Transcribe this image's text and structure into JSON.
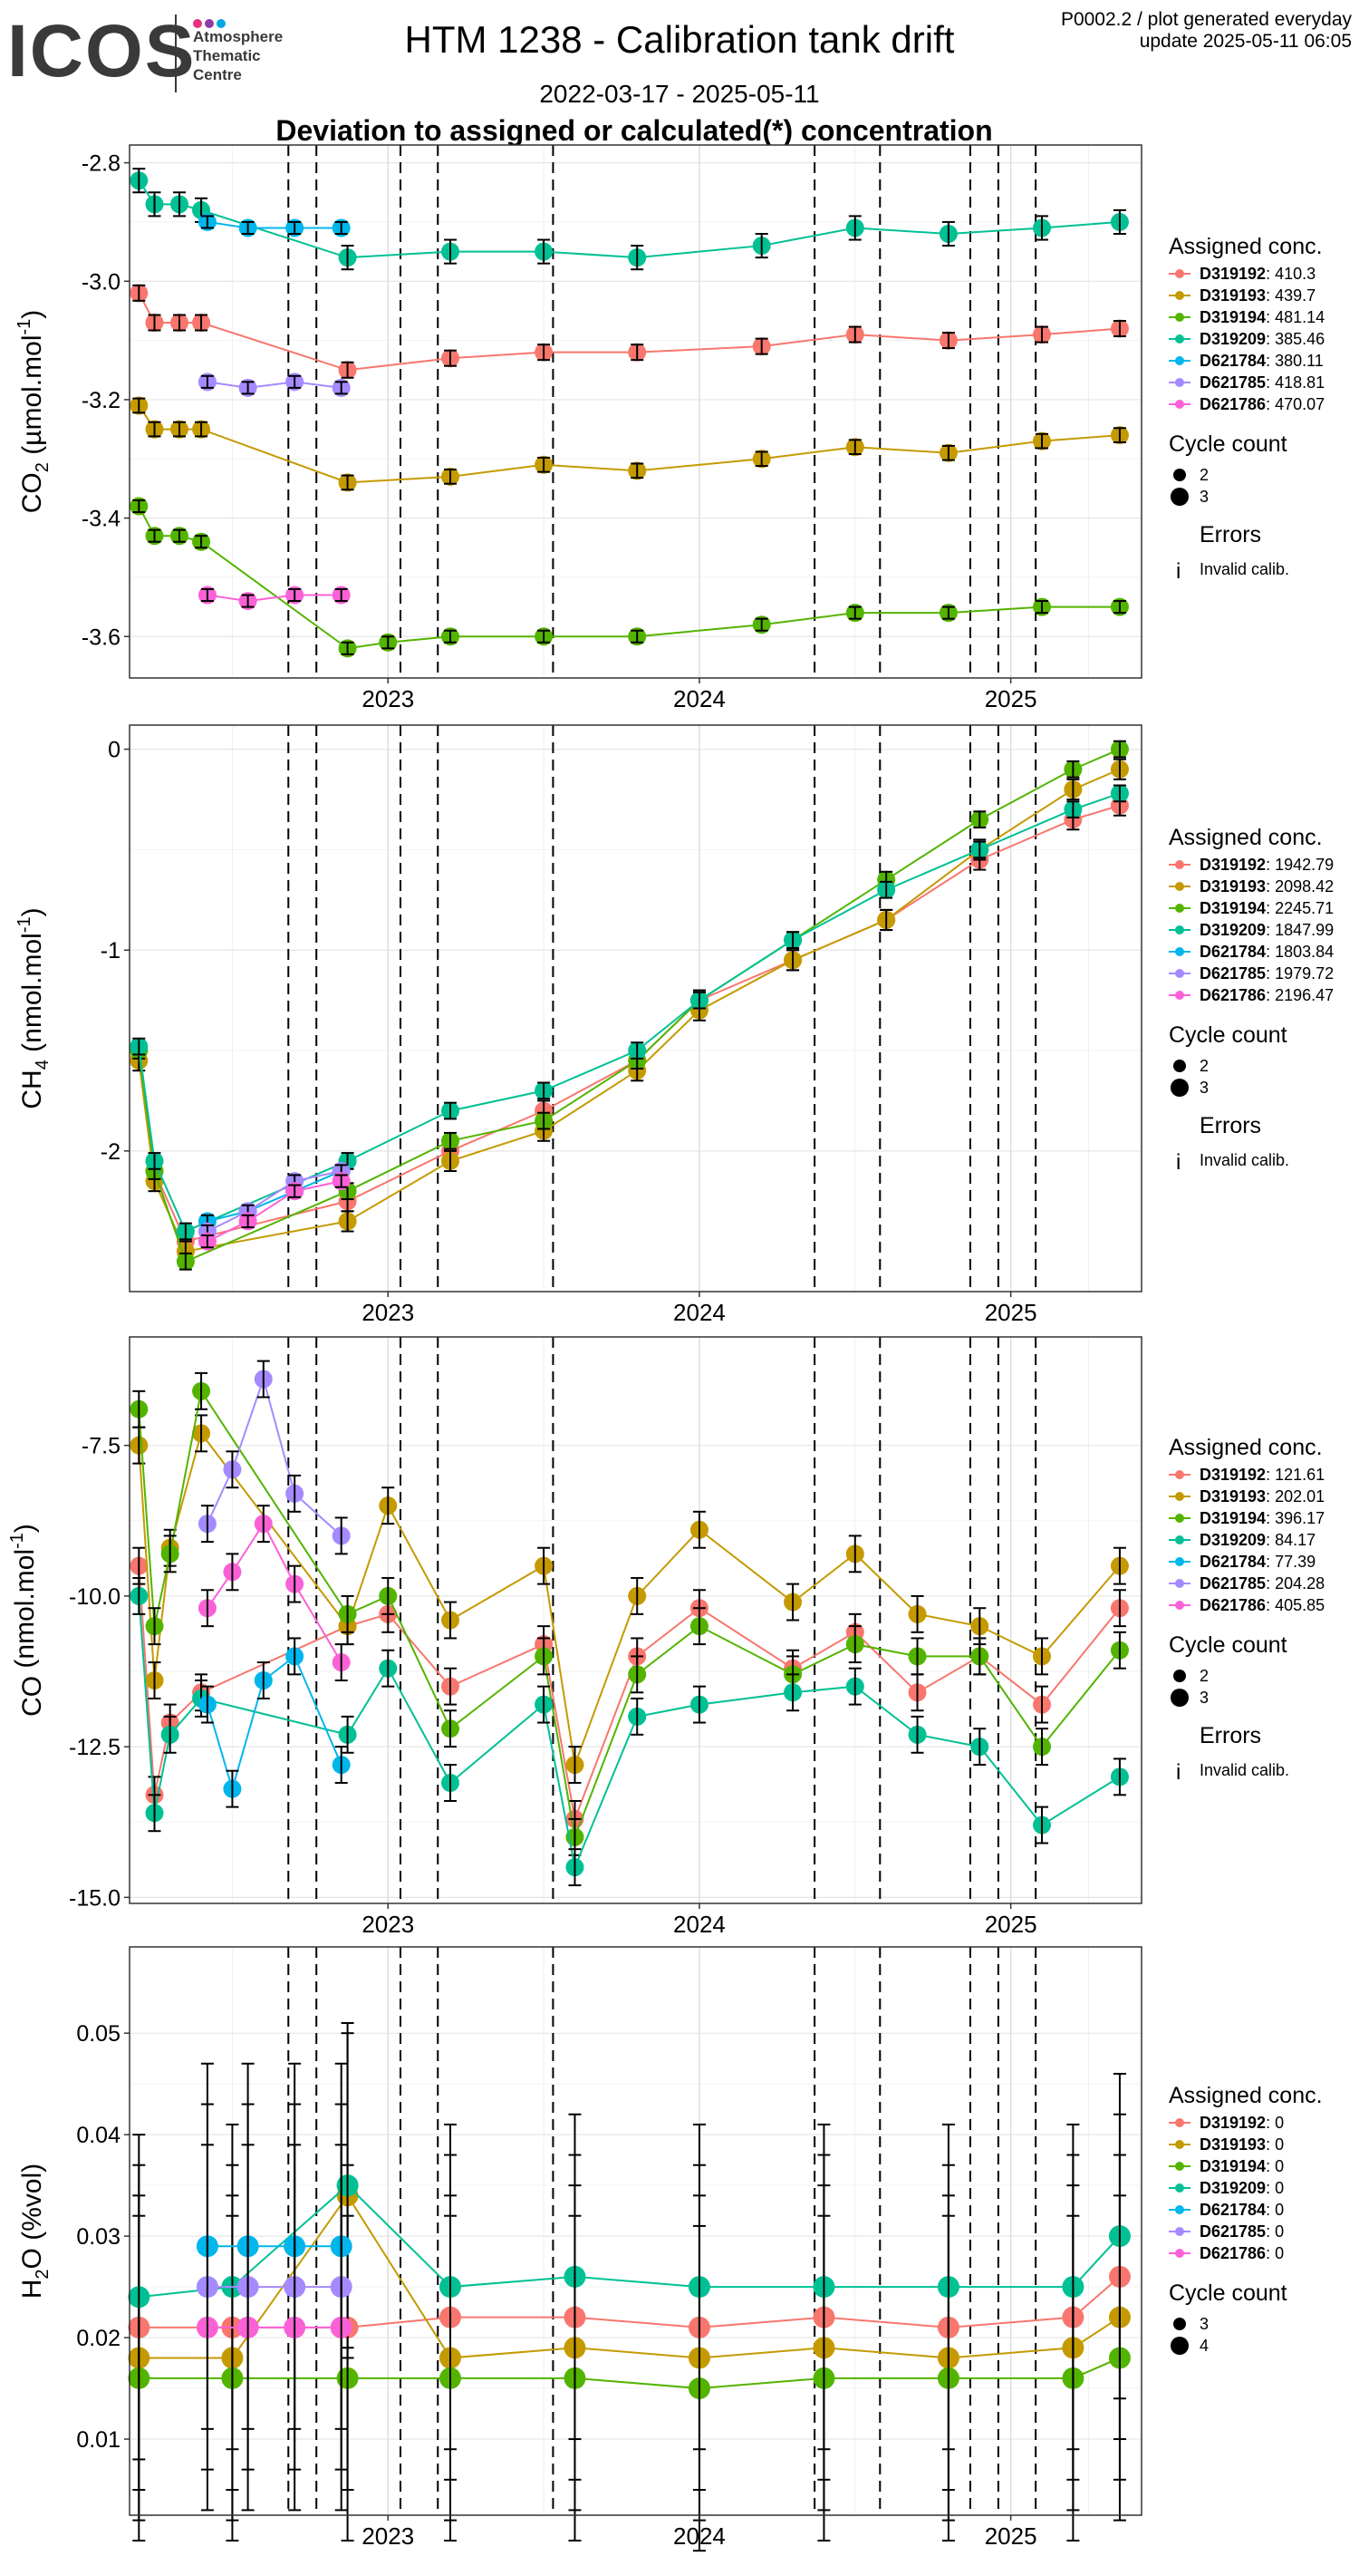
{
  "header": {
    "logo_text": "ICOS",
    "logo_subtitle": [
      "Atmosphere",
      "Thematic",
      "Centre"
    ],
    "logo_dot_colors": [
      "#e8317e",
      "#8e3ca8",
      "#00a9e0"
    ],
    "title": "HTM 1238 - Calibration tank drift",
    "date_range": "2022-03-17 - 2025-05-11",
    "subtitle": "Deviation to assigned or calculated(*) concentration",
    "plot_id": "P0002.2 / plot generated everyday",
    "update": "update  2025-05-11 06:05"
  },
  "legend_common": {
    "assigned_title": "Assigned conc.",
    "cycle_title": "Cycle count",
    "errors_title": "Errors",
    "errors_item": "Invalid calib.",
    "errors_glyph": "i"
  },
  "colors": {
    "D319192": "#f8766d",
    "D319193": "#c49a00",
    "D319194": "#53b400",
    "D319209": "#00c094",
    "D621784": "#00b6eb",
    "D621785": "#a58aff",
    "D621786": "#fb61d7"
  },
  "chart_data": [
    {
      "type": "scatter",
      "panel": "co2",
      "ylabel": "CO2 (µmol.mol-1)",
      "ylabel_main": "CO",
      "ylabel_sub": "2",
      "ylabel_rest": " (µmol.mol",
      "ylabel_sup": "-1",
      "ylabel_end": ")",
      "ylim": [
        -3.67,
        -2.77
      ],
      "yticks": [
        -2.8,
        -3.0,
        -3.2,
        -3.4,
        -3.6
      ],
      "ytick_labels": [
        "-2.8",
        "-3.0",
        "-3.2",
        "-3.4",
        "-3.6"
      ],
      "legend_entries": [
        {
          "id": "D319192",
          "value": "410.3"
        },
        {
          "id": "D319193",
          "value": "439.7"
        },
        {
          "id": "D319194",
          "value": "481.14"
        },
        {
          "id": "D319209",
          "value": "385.46"
        },
        {
          "id": "D621784",
          "value": "380.11"
        },
        {
          "id": "D621785",
          "value": "418.81"
        },
        {
          "id": "D621786",
          "value": "470.07"
        }
      ],
      "cycle_counts": [
        "2",
        "3"
      ],
      "series": [
        {
          "name": "D319192",
          "x": [
            2022.2,
            2022.25,
            2022.33,
            2022.4,
            2022.87,
            2023.2,
            2023.5,
            2023.8,
            2024.2,
            2024.5,
            2024.8,
            2025.1,
            2025.35
          ],
          "y": [
            -3.02,
            -3.07,
            -3.07,
            -3.07,
            -3.15,
            -3.13,
            -3.12,
            -3.12,
            -3.11,
            -3.09,
            -3.1,
            -3.09,
            -3.08
          ],
          "err": 0.013
        },
        {
          "name": "D319193",
          "x": [
            2022.2,
            2022.25,
            2022.33,
            2022.4,
            2022.87,
            2023.2,
            2023.5,
            2023.8,
            2024.2,
            2024.5,
            2024.8,
            2025.1,
            2025.35
          ],
          "y": [
            -3.21,
            -3.25,
            -3.25,
            -3.25,
            -3.34,
            -3.33,
            -3.31,
            -3.32,
            -3.3,
            -3.28,
            -3.29,
            -3.27,
            -3.26
          ],
          "err": 0.012
        },
        {
          "name": "D319194",
          "x": [
            2022.2,
            2022.25,
            2022.33,
            2022.4,
            2022.87,
            2023.0,
            2023.2,
            2023.5,
            2023.8,
            2024.2,
            2024.5,
            2024.8,
            2025.1,
            2025.35
          ],
          "y": [
            -3.38,
            -3.43,
            -3.43,
            -3.44,
            -3.62,
            -3.61,
            -3.6,
            -3.6,
            -3.6,
            -3.58,
            -3.56,
            -3.56,
            -3.55,
            -3.55
          ],
          "err": 0.01
        },
        {
          "name": "D319209",
          "x": [
            2022.2,
            2022.25,
            2022.33,
            2022.4,
            2022.87,
            2023.2,
            2023.5,
            2023.8,
            2024.2,
            2024.5,
            2024.8,
            2025.1,
            2025.35
          ],
          "y": [
            -2.83,
            -2.87,
            -2.87,
            -2.88,
            -2.96,
            -2.95,
            -2.95,
            -2.96,
            -2.94,
            -2.91,
            -2.92,
            -2.91,
            -2.9
          ],
          "err": 0.02
        },
        {
          "name": "D621784",
          "x": [
            2022.42,
            2022.55,
            2022.7,
            2022.85
          ],
          "y": [
            -2.9,
            -2.91,
            -2.91,
            -2.91
          ],
          "err": 0.01
        },
        {
          "name": "D621785",
          "x": [
            2022.42,
            2022.55,
            2022.7,
            2022.85
          ],
          "y": [
            -3.17,
            -3.18,
            -3.17,
            -3.18
          ],
          "err": 0.01
        },
        {
          "name": "D621786",
          "x": [
            2022.42,
            2022.55,
            2022.7,
            2022.85
          ],
          "y": [
            -3.53,
            -3.54,
            -3.53,
            -3.53
          ],
          "err": 0.01
        }
      ]
    },
    {
      "type": "scatter",
      "panel": "ch4",
      "ylabel": "CH4 (nmol.mol-1)",
      "ylabel_main": "CH",
      "ylabel_sub": "4",
      "ylabel_rest": " (nmol.mol",
      "ylabel_sup": "-1",
      "ylabel_end": ")",
      "ylim": [
        -2.7,
        0.12
      ],
      "yticks": [
        0,
        -1,
        -2
      ],
      "ytick_labels": [
        "0",
        "-1",
        "-2"
      ],
      "legend_entries": [
        {
          "id": "D319192",
          "value": "1942.79"
        },
        {
          "id": "D319193",
          "value": "2098.42"
        },
        {
          "id": "D319194",
          "value": "2245.71"
        },
        {
          "id": "D319209",
          "value": "1847.99"
        },
        {
          "id": "D621784",
          "value": "1803.84"
        },
        {
          "id": "D621785",
          "value": "1979.72"
        },
        {
          "id": "D621786",
          "value": "2196.47"
        }
      ],
      "cycle_counts": [
        "2",
        "3"
      ],
      "series": [
        {
          "name": "D319192",
          "x": [
            2022.2,
            2022.25,
            2022.35,
            2022.87,
            2023.2,
            2023.5,
            2023.8,
            2024.0,
            2024.3,
            2024.6,
            2024.9,
            2025.2,
            2025.35
          ],
          "y": [
            -1.5,
            -2.1,
            -2.45,
            -2.25,
            -2.0,
            -1.8,
            -1.55,
            -1.25,
            -1.05,
            -0.85,
            -0.55,
            -0.35,
            -0.28
          ],
          "err": 0.05
        },
        {
          "name": "D319193",
          "x": [
            2022.2,
            2022.25,
            2022.35,
            2022.87,
            2023.2,
            2023.5,
            2023.8,
            2024.0,
            2024.3,
            2024.6,
            2024.9,
            2025.2,
            2025.35
          ],
          "y": [
            -1.55,
            -2.15,
            -2.5,
            -2.35,
            -2.05,
            -1.9,
            -1.6,
            -1.3,
            -1.05,
            -0.85,
            -0.5,
            -0.2,
            -0.1
          ],
          "err": 0.05
        },
        {
          "name": "D319194",
          "x": [
            2022.2,
            2022.25,
            2022.35,
            2022.87,
            2023.2,
            2023.5,
            2023.8,
            2024.0,
            2024.3,
            2024.6,
            2024.9,
            2025.2,
            2025.35
          ],
          "y": [
            -1.5,
            -2.1,
            -2.55,
            -2.2,
            -1.95,
            -1.85,
            -1.55,
            -1.25,
            -0.95,
            -0.65,
            -0.35,
            -0.1,
            0.0
          ],
          "err": 0.04
        },
        {
          "name": "D319209",
          "x": [
            2022.2,
            2022.25,
            2022.35,
            2022.87,
            2023.2,
            2023.5,
            2023.8,
            2024.0,
            2024.3,
            2024.6,
            2024.9,
            2025.2,
            2025.35
          ],
          "y": [
            -1.48,
            -2.05,
            -2.4,
            -2.05,
            -1.8,
            -1.7,
            -1.5,
            -1.25,
            -0.95,
            -0.7,
            -0.5,
            -0.3,
            -0.22
          ],
          "err": 0.04
        },
        {
          "name": "D621784",
          "x": [
            2022.42,
            2022.55,
            2022.7,
            2022.85
          ],
          "y": [
            -2.35,
            -2.3,
            -2.2,
            -2.1
          ],
          "err": 0.03
        },
        {
          "name": "D621785",
          "x": [
            2022.42,
            2022.55,
            2022.7,
            2022.85
          ],
          "y": [
            -2.4,
            -2.3,
            -2.15,
            -2.1
          ],
          "err": 0.03
        },
        {
          "name": "D621786",
          "x": [
            2022.42,
            2022.55,
            2022.7,
            2022.85
          ],
          "y": [
            -2.45,
            -2.35,
            -2.2,
            -2.15
          ],
          "err": 0.03
        }
      ]
    },
    {
      "type": "scatter",
      "panel": "co",
      "ylabel": "CO (nmol.mol-1)",
      "ylabel_main": "CO",
      "ylabel_sub": "",
      "ylabel_rest": " (nmol.mol",
      "ylabel_sup": "-1",
      "ylabel_end": ")",
      "ylim": [
        -15.1,
        -5.7
      ],
      "yticks": [
        -7.5,
        -10.0,
        -12.5,
        -15.0
      ],
      "ytick_labels": [
        "-7.5",
        "-10.0",
        "-12.5",
        "-15.0"
      ],
      "legend_entries": [
        {
          "id": "D319192",
          "value": "121.61"
        },
        {
          "id": "D319193",
          "value": "202.01"
        },
        {
          "id": "D319194",
          "value": "396.17"
        },
        {
          "id": "D319209",
          "value": "84.17"
        },
        {
          "id": "D621784",
          "value": "77.39"
        },
        {
          "id": "D621785",
          "value": "204.28"
        },
        {
          "id": "D621786",
          "value": "405.85"
        }
      ],
      "cycle_counts": [
        "2",
        "3"
      ],
      "series": [
        {
          "name": "D319192",
          "x": [
            2022.2,
            2022.25,
            2022.3,
            2022.4,
            2022.87,
            2023.0,
            2023.2,
            2023.5,
            2023.6,
            2023.8,
            2024.0,
            2024.3,
            2024.5,
            2024.7,
            2024.9,
            2025.1,
            2025.35
          ],
          "y": [
            -9.5,
            -13.3,
            -12.1,
            -11.6,
            -10.5,
            -10.3,
            -11.5,
            -10.8,
            -13.7,
            -11.0,
            -10.2,
            -11.2,
            -10.6,
            -11.6,
            -11.0,
            -11.8,
            -10.2
          ],
          "err": 0.3
        },
        {
          "name": "D319193",
          "x": [
            2022.2,
            2022.25,
            2022.3,
            2022.4,
            2022.87,
            2023.0,
            2023.2,
            2023.5,
            2023.6,
            2023.8,
            2024.0,
            2024.3,
            2024.5,
            2024.7,
            2024.9,
            2025.1,
            2025.35
          ],
          "y": [
            -7.5,
            -11.4,
            -9.2,
            -7.3,
            -10.5,
            -8.5,
            -10.4,
            -9.5,
            -12.8,
            -10.0,
            -8.9,
            -10.1,
            -9.3,
            -10.3,
            -10.5,
            -11.0,
            -9.5
          ],
          "err": 0.3
        },
        {
          "name": "D319194",
          "x": [
            2022.2,
            2022.25,
            2022.3,
            2022.4,
            2022.87,
            2023.0,
            2023.2,
            2023.5,
            2023.6,
            2023.8,
            2024.0,
            2024.3,
            2024.5,
            2024.7,
            2024.9,
            2025.1,
            2025.35
          ],
          "y": [
            -6.9,
            -10.5,
            -9.3,
            -6.6,
            -10.3,
            -10.0,
            -12.2,
            -11.0,
            -14.0,
            -11.3,
            -10.5,
            -11.3,
            -10.8,
            -11.0,
            -11.0,
            -12.5,
            -10.9
          ],
          "err": 0.3
        },
        {
          "name": "D319209",
          "x": [
            2022.2,
            2022.25,
            2022.3,
            2022.4,
            2022.87,
            2023.0,
            2023.2,
            2023.5,
            2023.6,
            2023.8,
            2024.0,
            2024.3,
            2024.5,
            2024.7,
            2024.9,
            2025.1,
            2025.35
          ],
          "y": [
            -10.0,
            -13.6,
            -12.3,
            -11.7,
            -12.3,
            -11.2,
            -13.1,
            -11.8,
            -14.5,
            -12.0,
            -11.8,
            -11.6,
            -11.5,
            -12.3,
            -12.5,
            -13.8,
            -13.0
          ],
          "err": 0.3
        },
        {
          "name": "D621784",
          "x": [
            2022.42,
            2022.5,
            2022.6,
            2022.7,
            2022.85
          ],
          "y": [
            -11.8,
            -13.2,
            -11.4,
            -11.0,
            -12.8
          ],
          "err": 0.3
        },
        {
          "name": "D621785",
          "x": [
            2022.42,
            2022.5,
            2022.6,
            2022.7,
            2022.85
          ],
          "y": [
            -8.8,
            -7.9,
            -6.4,
            -8.3,
            -9.0
          ],
          "err": 0.3
        },
        {
          "name": "D621786",
          "x": [
            2022.42,
            2022.5,
            2022.6,
            2022.7,
            2022.85
          ],
          "y": [
            -10.2,
            -9.6,
            -8.8,
            -9.8,
            -11.1
          ],
          "err": 0.3
        }
      ]
    },
    {
      "type": "scatter",
      "panel": "h2o",
      "ylabel": "H2O (%vol)",
      "ylabel_main": "H",
      "ylabel_sub": "2",
      "ylabel_rest": "O (%vol)",
      "ylabel_sup": "",
      "ylabel_end": "",
      "ylim": [
        0.0025,
        0.0585
      ],
      "yticks": [
        0.05,
        0.04,
        0.03,
        0.02,
        0.01
      ],
      "ytick_labels": [
        "0.05",
        "0.04",
        "0.03",
        "0.02",
        "0.01"
      ],
      "legend_entries": [
        {
          "id": "D319192",
          "value": "0"
        },
        {
          "id": "D319193",
          "value": "0"
        },
        {
          "id": "D319194",
          "value": "0"
        },
        {
          "id": "D319209",
          "value": "0"
        },
        {
          "id": "D621784",
          "value": "0"
        },
        {
          "id": "D621785",
          "value": "0"
        },
        {
          "id": "D621786",
          "value": "0"
        }
      ],
      "cycle_counts": [
        "3",
        "4"
      ],
      "series": [
        {
          "name": "D319192",
          "x": [
            2022.2,
            2022.5,
            2022.87,
            2023.2,
            2023.6,
            2024.0,
            2024.4,
            2024.8,
            2025.2,
            2025.35
          ],
          "y": [
            0.021,
            0.021,
            0.021,
            0.022,
            0.022,
            0.021,
            0.022,
            0.021,
            0.022,
            0.026
          ],
          "err": 0.016
        },
        {
          "name": "D319193",
          "x": [
            2022.2,
            2022.5,
            2022.87,
            2023.2,
            2023.6,
            2024.0,
            2024.4,
            2024.8,
            2025.2,
            2025.35
          ],
          "y": [
            0.018,
            0.018,
            0.034,
            0.018,
            0.019,
            0.018,
            0.019,
            0.018,
            0.019,
            0.022
          ],
          "err": 0.016
        },
        {
          "name": "D319194",
          "x": [
            2022.2,
            2022.5,
            2022.87,
            2023.2,
            2023.6,
            2024.0,
            2024.4,
            2024.8,
            2025.2,
            2025.35
          ],
          "y": [
            0.016,
            0.016,
            0.016,
            0.016,
            0.016,
            0.015,
            0.016,
            0.016,
            0.016,
            0.018
          ],
          "err": 0.016
        },
        {
          "name": "D319209",
          "x": [
            2022.2,
            2022.5,
            2022.87,
            2023.2,
            2023.6,
            2024.0,
            2024.4,
            2024.8,
            2025.2,
            2025.35
          ],
          "y": [
            0.024,
            0.025,
            0.035,
            0.025,
            0.026,
            0.025,
            0.025,
            0.025,
            0.025,
            0.03
          ],
          "err": 0.016
        },
        {
          "name": "D621784",
          "x": [
            2022.42,
            2022.55,
            2022.7,
            2022.85
          ],
          "y": [
            0.029,
            0.029,
            0.029,
            0.029
          ],
          "err": 0.018
        },
        {
          "name": "D621785",
          "x": [
            2022.42,
            2022.55,
            2022.7,
            2022.85
          ],
          "y": [
            0.025,
            0.025,
            0.025,
            0.025
          ],
          "err": 0.018
        },
        {
          "name": "D621786",
          "x": [
            2022.42,
            2022.55,
            2022.7,
            2022.85
          ],
          "y": [
            0.021,
            0.021,
            0.021,
            0.021
          ],
          "err": 0.018
        }
      ]
    }
  ],
  "x_axis": {
    "xlim": [
      2022.17,
      2025.42
    ],
    "ticks": [
      2023,
      2024,
      2025
    ],
    "tick_labels": [
      "2023",
      "2024",
      "2025"
    ],
    "vlines": [
      2022.68,
      2022.77,
      2023.04,
      2023.16,
      2023.53,
      2024.37,
      2024.58,
      2024.87,
      2024.96,
      2025.08
    ]
  }
}
